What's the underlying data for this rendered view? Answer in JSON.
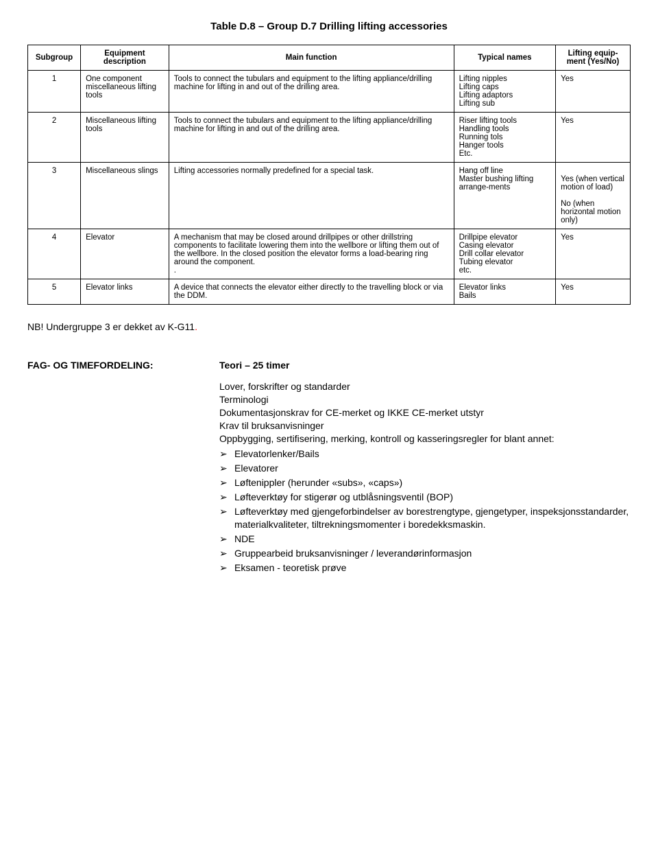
{
  "title": "Table D.8 – Group D.7   Drilling lifting accessories",
  "headers": {
    "c1": "Subgroup",
    "c2": "Equipment description",
    "c3": "Main function",
    "c4": "Typical names",
    "c5": "Lifting equip-ment (Yes/No)"
  },
  "rows": [
    {
      "sub": "1",
      "equip": "One component miscellaneous lifting tools",
      "func": "Tools to connect the tubulars and equipment to the lifting appliance/drilling machine for lifting in and out of the drilling area.",
      "tnames": [
        "Lifting nipples",
        "Lifting caps",
        "Lifting adaptors",
        "Lifting sub"
      ],
      "lift": [
        "Yes"
      ]
    },
    {
      "sub": "2",
      "equip": "Miscellaneous lifting tools",
      "func": "Tools to connect the tubulars and equipment to the lifting appliance/drilling machine for lifting in and out of the drilling area.",
      "tnames": [
        "Riser lifting tools",
        "Handling tools",
        "Running tols",
        "Hanger tools",
        "Etc."
      ],
      "lift": [
        "Yes"
      ]
    },
    {
      "sub": "3",
      "equip": "Miscellaneous slings",
      "func": "Lifting accessories normally predefined for a special task.",
      "tnames": [
        "Hang off line",
        "Master bushing lifting arrange-ments"
      ],
      "lift": [
        "",
        "Yes (when vertical motion of load)",
        "",
        "No (when horizontal motion only)"
      ]
    },
    {
      "sub": "4",
      "equip": "Elevator",
      "func": "A mechanism that may be closed around drillpipes or other drillstring components to facilitate lowering them into the wellbore or lifting them out of the wellbore. In the closed position the elevator forms a load-bearing ring around the component.\n.",
      "tnames": [
        "Drillpipe elevator",
        "Casing elevator",
        "Drill collar elevator",
        "Tubing elevator",
        "etc."
      ],
      "lift": [
        "Yes"
      ]
    },
    {
      "sub": "5",
      "equip": "Elevator links",
      "func": "A device that connects the elevator either directly to the travelling block or via the DDM.",
      "tnames": [
        "Elevator links",
        "Bails"
      ],
      "lift": [
        "Yes"
      ]
    }
  ],
  "note_prefix": "NB! Undergruppe 3 er dekket av K-G11",
  "note_red": ".",
  "section_label": "FAG- OG TIMEFORDELING:",
  "section_value": "Teori – 25 timer",
  "content_lines": [
    "Lover, forskrifter og standarder",
    "Terminologi",
    "Dokumentasjonskrav for CE-merket og IKKE CE-merket utstyr",
    "Krav til bruksanvisninger",
    "Oppbygging, sertifisering, merking, kontroll og kasseringsregler for blant annet:"
  ],
  "bullets": [
    "Elevatorlenker/Bails",
    "Elevatorer",
    "Løftenippler (herunder «subs», «caps»)",
    "Løfteverktøy for stigerør og utblåsningsventil (BOP)",
    "Løfteverktøy med gjengeforbindelser av borestrengtype, gjengetyper, inspeksjonsstandarder, materialkvaliteter, tiltrekningsmomenter i boredekksmaskin.",
    "NDE",
    "Gruppearbeid bruksanvisninger / leverandørinformasjon",
    "Eksamen - teoretisk prøve"
  ]
}
